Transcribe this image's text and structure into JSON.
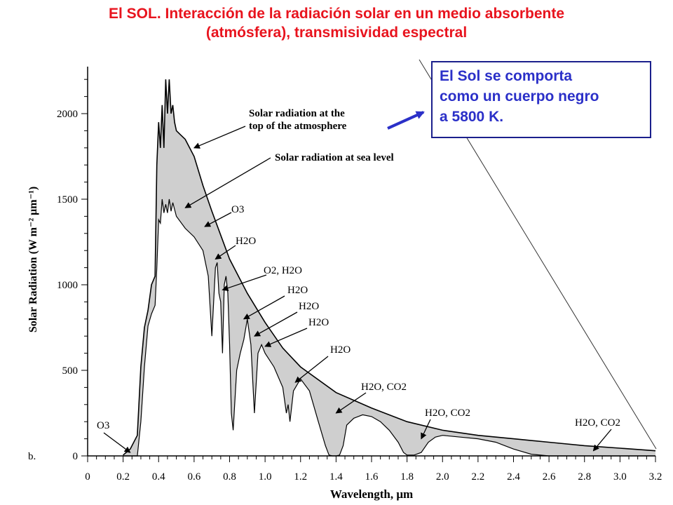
{
  "title": {
    "line1": "El SOL. Interacción de la radiación solar en un medio absorbente",
    "line2": "(atmósfera), transmisividad espectral"
  },
  "callout": {
    "line1": "El Sol se comporta",
    "line2": "como un cuerpo negro",
    "line3": "a 5800 K."
  },
  "colors": {
    "title": "#e8141e",
    "callout_text": "#2b30c8",
    "callout_border": "#1b1f8c",
    "absorption_fill": "#cfcfcf",
    "curve": "#000000"
  },
  "chart_data": {
    "type": "area",
    "panel_label": "b.",
    "xlabel": "Wavelength, μm",
    "ylabel": "Solar Radiation (W m⁻² μm⁻¹)",
    "xlim": [
      0,
      3.2
    ],
    "ylim": [
      0,
      2300
    ],
    "x_ticks": [
      "0",
      "0.2",
      "0.4",
      "0.6",
      "0.8",
      "1.0",
      "1.2",
      "1.4",
      "1.6",
      "1.8",
      "2.0",
      "2.2",
      "2.4",
      "2.6",
      "2.8",
      "3.0",
      "3.2"
    ],
    "y_ticks": [
      "0",
      "500",
      "1000",
      "1500",
      "2000"
    ],
    "grid": false,
    "series": [
      {
        "name": "Solar radiation at the top of the atmosphere",
        "x": [
          0.2,
          0.24,
          0.28,
          0.3,
          0.32,
          0.34,
          0.36,
          0.38,
          0.39,
          0.4,
          0.41,
          0.42,
          0.43,
          0.44,
          0.45,
          0.46,
          0.47,
          0.48,
          0.49,
          0.5,
          0.52,
          0.55,
          0.6,
          0.65,
          0.7,
          0.75,
          0.8,
          0.9,
          1.0,
          1.1,
          1.2,
          1.4,
          1.6,
          1.8,
          2.0,
          2.2,
          2.4,
          2.6,
          2.8,
          3.0,
          3.2
        ],
        "y": [
          5,
          40,
          120,
          520,
          750,
          850,
          1000,
          1050,
          1700,
          1950,
          1800,
          2050,
          1800,
          2200,
          2000,
          2200,
          2000,
          2050,
          1950,
          1900,
          1880,
          1850,
          1750,
          1580,
          1430,
          1290,
          1150,
          950,
          780,
          630,
          520,
          370,
          280,
          200,
          150,
          120,
          100,
          80,
          60,
          45,
          30
        ]
      },
      {
        "name": "Solar radiation at sea level",
        "x": [
          0.2,
          0.28,
          0.3,
          0.32,
          0.34,
          0.36,
          0.38,
          0.39,
          0.4,
          0.41,
          0.42,
          0.43,
          0.44,
          0.45,
          0.46,
          0.47,
          0.48,
          0.5,
          0.55,
          0.6,
          0.65,
          0.68,
          0.7,
          0.72,
          0.73,
          0.74,
          0.75,
          0.76,
          0.77,
          0.78,
          0.79,
          0.8,
          0.81,
          0.82,
          0.84,
          0.86,
          0.88,
          0.9,
          0.92,
          0.94,
          0.96,
          0.98,
          1.0,
          1.05,
          1.1,
          1.12,
          1.13,
          1.14,
          1.16,
          1.2,
          1.25,
          1.3,
          1.34,
          1.36,
          1.38,
          1.4,
          1.42,
          1.44,
          1.46,
          1.5,
          1.55,
          1.6,
          1.65,
          1.7,
          1.75,
          1.78,
          1.8,
          1.84,
          1.88,
          1.92,
          1.96,
          2.0,
          2.1,
          2.2,
          2.3,
          2.4,
          2.5,
          2.6,
          2.7,
          2.8,
          2.9,
          3.0,
          3.1,
          3.2
        ],
        "y": [
          0,
          0,
          200,
          520,
          760,
          830,
          880,
          1100,
          1380,
          1360,
          1500,
          1420,
          1470,
          1420,
          1500,
          1430,
          1480,
          1400,
          1330,
          1280,
          1200,
          1050,
          700,
          1100,
          1130,
          950,
          900,
          600,
          1000,
          1050,
          950,
          650,
          250,
          150,
          500,
          600,
          680,
          800,
          650,
          250,
          600,
          650,
          600,
          520,
          400,
          250,
          300,
          200,
          380,
          450,
          380,
          200,
          60,
          5,
          0,
          0,
          5,
          60,
          180,
          220,
          240,
          230,
          200,
          150,
          80,
          20,
          5,
          5,
          20,
          80,
          110,
          120,
          110,
          100,
          80,
          40,
          10,
          0,
          0,
          0,
          0,
          0,
          0,
          0
        ]
      }
    ],
    "annotations": [
      {
        "text": [
          "Solar radiation at the",
          "top of the atmosphere"
        ],
        "target": [
          0.6,
          1800
        ]
      },
      {
        "text": [
          "Solar radiation at sea level"
        ],
        "target": [
          0.55,
          1450
        ]
      },
      {
        "text": [
          "O3"
        ],
        "target": [
          0.66,
          1340
        ]
      },
      {
        "text": [
          "H2O"
        ],
        "target": [
          0.72,
          1150
        ]
      },
      {
        "text": [
          "O2, H2O"
        ],
        "target": [
          0.76,
          970
        ]
      },
      {
        "text": [
          "H2O"
        ],
        "target": [
          0.88,
          800
        ]
      },
      {
        "text": [
          "H2O"
        ],
        "target": [
          0.94,
          700
        ]
      },
      {
        "text": [
          "H2O"
        ],
        "target": [
          1.0,
          640
        ]
      },
      {
        "text": [
          "H2O"
        ],
        "target": [
          1.17,
          430
        ]
      },
      {
        "text": [
          "H2O, CO2"
        ],
        "target": [
          1.4,
          250
        ]
      },
      {
        "text": [
          "H2O, CO2"
        ],
        "target": [
          1.88,
          100
        ]
      },
      {
        "text": [
          "H2O, CO2"
        ],
        "target": [
          2.85,
          30
        ]
      },
      {
        "text": [
          "O3"
        ],
        "target": [
          0.24,
          20
        ]
      }
    ]
  }
}
